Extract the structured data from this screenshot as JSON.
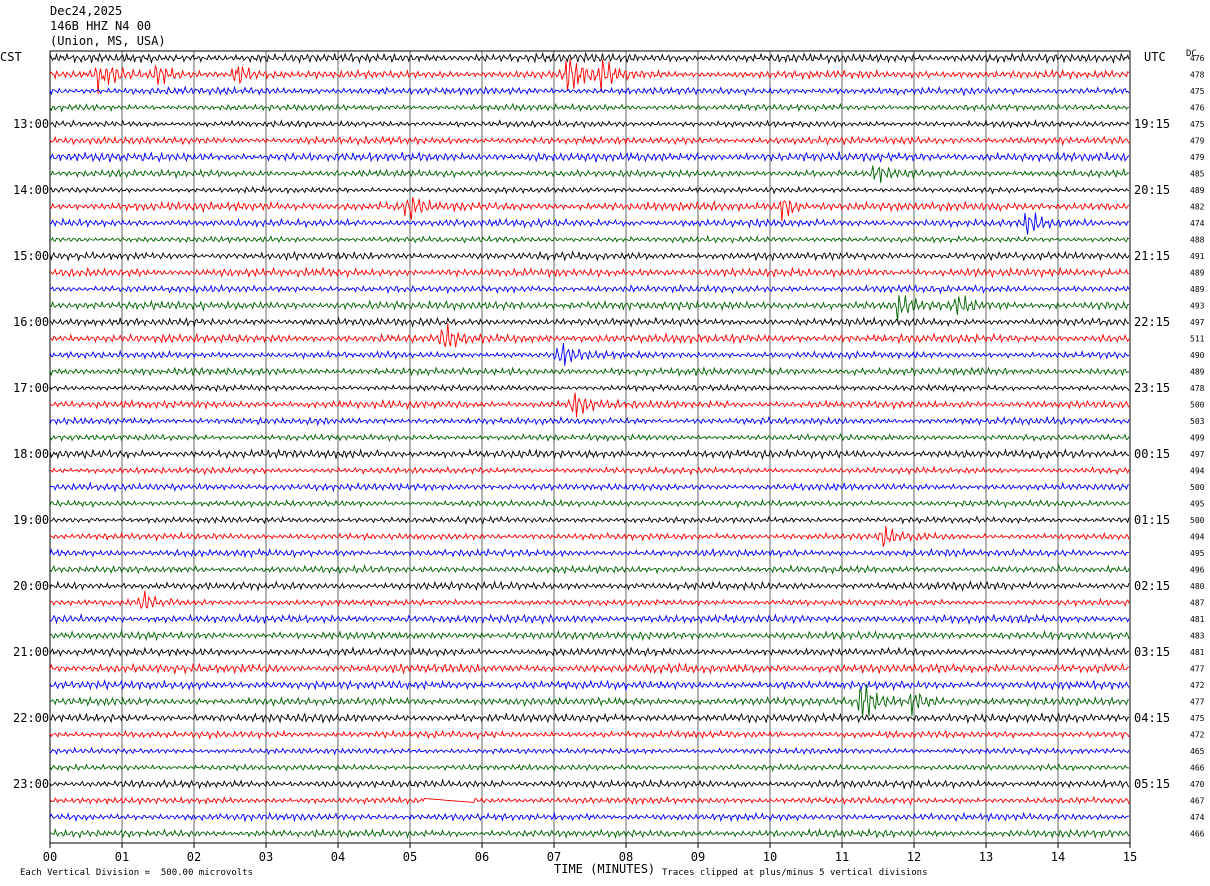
{
  "header": {
    "date": "Dec24,2025",
    "station": "146B HHZ N4 00",
    "location": "(Union, MS, USA)"
  },
  "labels": {
    "left_tz": "CST",
    "right_tz": "UTC",
    "dc": "DC",
    "xlabel": "TIME (MINUTES)",
    "scale_note": "Each Vertical Division =  500.00 microvolts",
    "clip_note": "Traces clipped at plus/minus 5 vertical divisions"
  },
  "colors": {
    "black": "#000000",
    "red": "#ff0000",
    "blue": "#0000ff",
    "green": "#006400",
    "grid": "#000000"
  },
  "chart_data": {
    "type": "line",
    "title": "",
    "xlabel": "TIME (MINUTES)",
    "xlim": [
      0,
      15
    ],
    "x_ticks": [
      "00",
      "01",
      "02",
      "03",
      "04",
      "05",
      "06",
      "07",
      "08",
      "09",
      "10",
      "11",
      "12",
      "13",
      "14",
      "15"
    ],
    "trace_colors": [
      "black",
      "red",
      "blue",
      "green"
    ],
    "cst_hour_labels": [
      {
        "row": 4,
        "label": "13:00"
      },
      {
        "row": 8,
        "label": "14:00"
      },
      {
        "row": 12,
        "label": "15:00"
      },
      {
        "row": 16,
        "label": "16:00"
      },
      {
        "row": 20,
        "label": "17:00"
      },
      {
        "row": 24,
        "label": "18:00"
      },
      {
        "row": 28,
        "label": "19:00"
      },
      {
        "row": 32,
        "label": "20:00"
      },
      {
        "row": 36,
        "label": "21:00"
      },
      {
        "row": 40,
        "label": "22:00"
      },
      {
        "row": 44,
        "label": "23:00"
      }
    ],
    "utc_labels": [
      {
        "row": 4,
        "label": "19:15"
      },
      {
        "row": 8,
        "label": "20:15"
      },
      {
        "row": 12,
        "label": "21:15"
      },
      {
        "row": 16,
        "label": "22:15"
      },
      {
        "row": 20,
        "label": "23:15"
      },
      {
        "row": 24,
        "label": "00:15"
      },
      {
        "row": 28,
        "label": "01:15"
      },
      {
        "row": 32,
        "label": "02:15"
      },
      {
        "row": 36,
        "label": "03:15"
      },
      {
        "row": 40,
        "label": "04:15"
      },
      {
        "row": 44,
        "label": "05:15"
      }
    ],
    "dc_offsets": [
      "476",
      "478",
      "475",
      "476",
      "475",
      "479",
      "479",
      "485",
      "489",
      "482",
      "474",
      "488",
      "491",
      "489",
      "489",
      "493",
      "497",
      "511",
      "490",
      "489",
      "478",
      "500",
      "503",
      "499",
      "497",
      "494",
      "500",
      "495",
      "500",
      "494",
      "495",
      "496",
      "480",
      "487",
      "481",
      "483",
      "481",
      "477",
      "472",
      "477",
      "475",
      "472",
      "465",
      "466",
      "470",
      "467",
      "474",
      "466"
    ],
    "events": [
      {
        "row": 1,
        "minute": 0.7,
        "amp": 1.4
      },
      {
        "row": 1,
        "minute": 1.5,
        "amp": 1.0
      },
      {
        "row": 1,
        "minute": 2.6,
        "amp": 1.0
      },
      {
        "row": 1,
        "minute": 7.2,
        "amp": 2.2
      },
      {
        "row": 1,
        "minute": 7.7,
        "amp": 1.2
      },
      {
        "row": 7,
        "minute": 11.5,
        "amp": 1.1
      },
      {
        "row": 9,
        "minute": 5.0,
        "amp": 1.1
      },
      {
        "row": 9,
        "minute": 10.2,
        "amp": 1.0
      },
      {
        "row": 10,
        "minute": 13.6,
        "amp": 1.0
      },
      {
        "row": 15,
        "minute": 11.8,
        "amp": 1.1
      },
      {
        "row": 15,
        "minute": 12.6,
        "amp": 1.1
      },
      {
        "row": 17,
        "minute": 5.5,
        "amp": 1.2
      },
      {
        "row": 18,
        "minute": 7.1,
        "amp": 1.3
      },
      {
        "row": 21,
        "minute": 7.3,
        "amp": 1.1
      },
      {
        "row": 29,
        "minute": 11.6,
        "amp": 1.0
      },
      {
        "row": 33,
        "minute": 1.3,
        "amp": 1.0
      },
      {
        "row": 39,
        "minute": 11.3,
        "amp": 2.3
      },
      {
        "row": 39,
        "minute": 12.0,
        "amp": 1.0
      }
    ],
    "flat_segments": [
      {
        "row": 45,
        "start_minute": 5.2,
        "end_minute": 5.9
      }
    ]
  }
}
